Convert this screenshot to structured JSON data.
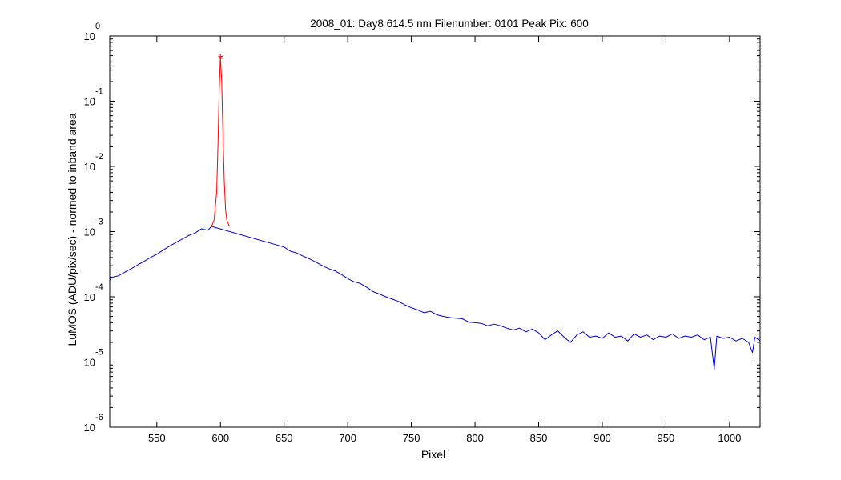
{
  "chart_data": {
    "type": "line",
    "title": "2008_01: Day8  614.5 nm  Filenumber: 0101 Peak Pix: 600",
    "xlabel": "Pixel",
    "ylabel": "LuMOS (ADU/pix/sec) - normed to inband area",
    "xlim": [
      513,
      1024
    ],
    "ylim": [
      1e-06,
      1
    ],
    "y_scale": "log",
    "grid": false,
    "x_ticks": [
      550,
      600,
      650,
      700,
      750,
      800,
      850,
      900,
      950,
      1000
    ],
    "y_ticks": [
      {
        "base": "10",
        "exp": "0",
        "value": 1
      },
      {
        "base": "10",
        "exp": "-1",
        "value": 0.1
      },
      {
        "base": "10",
        "exp": "-2",
        "value": 0.01
      },
      {
        "base": "10",
        "exp": "-3",
        "value": 0.001
      },
      {
        "base": "10",
        "exp": "-4",
        "value": 0.0001
      },
      {
        "base": "10",
        "exp": "-5",
        "value": 1e-05
      },
      {
        "base": "10",
        "exp": "-6",
        "value": 1e-06
      }
    ],
    "peak_marker": {
      "x": 600,
      "y": 0.47,
      "symbol": "*"
    },
    "series": [
      {
        "color": "#0000cc",
        "points": [
          [
            513,
            0.00018
          ],
          [
            515,
            0.0002
          ],
          [
            520,
            0.00021
          ],
          [
            525,
            0.00024
          ],
          [
            530,
            0.00027
          ],
          [
            535,
            0.00031
          ],
          [
            540,
            0.00035
          ],
          [
            545,
            0.0004
          ],
          [
            550,
            0.00045
          ],
          [
            555,
            0.00052
          ],
          [
            560,
            0.0006
          ],
          [
            565,
            0.00068
          ],
          [
            570,
            0.00077
          ],
          [
            575,
            0.00087
          ],
          [
            580,
            0.00095
          ],
          [
            585,
            0.0011
          ],
          [
            590,
            0.00105
          ],
          [
            593,
            0.0012
          ],
          [
            650,
            0.00058
          ],
          [
            655,
            0.0005
          ],
          [
            660,
            0.00047
          ],
          [
            665,
            0.00042
          ],
          [
            670,
            0.00038
          ],
          [
            675,
            0.00034
          ],
          [
            680,
            0.0003
          ],
          [
            685,
            0.00027
          ],
          [
            690,
            0.00025
          ],
          [
            695,
            0.00022
          ],
          [
            700,
            0.00019
          ],
          [
            705,
            0.00017
          ],
          [
            710,
            0.00016
          ],
          [
            715,
            0.00014
          ],
          [
            720,
            0.00012
          ],
          [
            725,
            0.00011
          ],
          [
            730,
            0.0001
          ],
          [
            735,
            9.2e-05
          ],
          [
            740,
            8.5e-05
          ],
          [
            745,
            7.5e-05
          ],
          [
            750,
            6.8e-05
          ],
          [
            755,
            6.3e-05
          ],
          [
            760,
            5.7e-05
          ],
          [
            765,
            6e-05
          ],
          [
            770,
            5.3e-05
          ],
          [
            775,
            5e-05
          ],
          [
            780,
            4.8e-05
          ],
          [
            785,
            4.7e-05
          ],
          [
            790,
            4.6e-05
          ],
          [
            795,
            4.1e-05
          ],
          [
            800,
            4e-05
          ],
          [
            805,
            3.9e-05
          ],
          [
            810,
            3.6e-05
          ],
          [
            815,
            3.8e-05
          ],
          [
            820,
            3.6e-05
          ],
          [
            825,
            3.3e-05
          ],
          [
            830,
            3.1e-05
          ],
          [
            835,
            3.3e-05
          ],
          [
            840,
            2.9e-05
          ],
          [
            845,
            3.2e-05
          ],
          [
            850,
            2.8e-05
          ],
          [
            855,
            2.2e-05
          ],
          [
            860,
            2.6e-05
          ],
          [
            865,
            3e-05
          ],
          [
            870,
            2.4e-05
          ],
          [
            875,
            2e-05
          ],
          [
            880,
            2.6e-05
          ],
          [
            885,
            2.9e-05
          ],
          [
            890,
            2.4e-05
          ],
          [
            895,
            2.5e-05
          ],
          [
            900,
            2.3e-05
          ],
          [
            905,
            2.8e-05
          ],
          [
            910,
            2.4e-05
          ],
          [
            915,
            2.5e-05
          ],
          [
            920,
            2.1e-05
          ],
          [
            925,
            2.7e-05
          ],
          [
            930,
            2.4e-05
          ],
          [
            935,
            2.6e-05
          ],
          [
            940,
            2.2e-05
          ],
          [
            945,
            2.5e-05
          ],
          [
            950,
            2.4e-05
          ],
          [
            955,
            2.7e-05
          ],
          [
            960,
            2.3e-05
          ],
          [
            965,
            2.5e-05
          ],
          [
            970,
            2.4e-05
          ],
          [
            975,
            2.6e-05
          ],
          [
            980,
            2.2e-05
          ],
          [
            985,
            2.4e-05
          ],
          [
            988,
            7.8e-06
          ],
          [
            990,
            2.5e-05
          ],
          [
            995,
            2.3e-05
          ],
          [
            1000,
            2.4e-05
          ],
          [
            1005,
            2.1e-05
          ],
          [
            1010,
            2.3e-05
          ],
          [
            1015,
            2e-05
          ],
          [
            1018,
            1.4e-05
          ],
          [
            1020,
            2.4e-05
          ],
          [
            1024,
            2.1e-05
          ]
        ]
      },
      {
        "color": "#ff0000",
        "points": [
          [
            593,
            0.0012
          ],
          [
            595,
            0.0015
          ],
          [
            597,
            0.004
          ],
          [
            598,
            0.02
          ],
          [
            599,
            0.15
          ],
          [
            600,
            0.47
          ],
          [
            601,
            0.2
          ],
          [
            602,
            0.03
          ],
          [
            603,
            0.006
          ],
          [
            604,
            0.0022
          ],
          [
            605,
            0.0015
          ],
          [
            607,
            0.0012
          ]
        ]
      }
    ]
  }
}
